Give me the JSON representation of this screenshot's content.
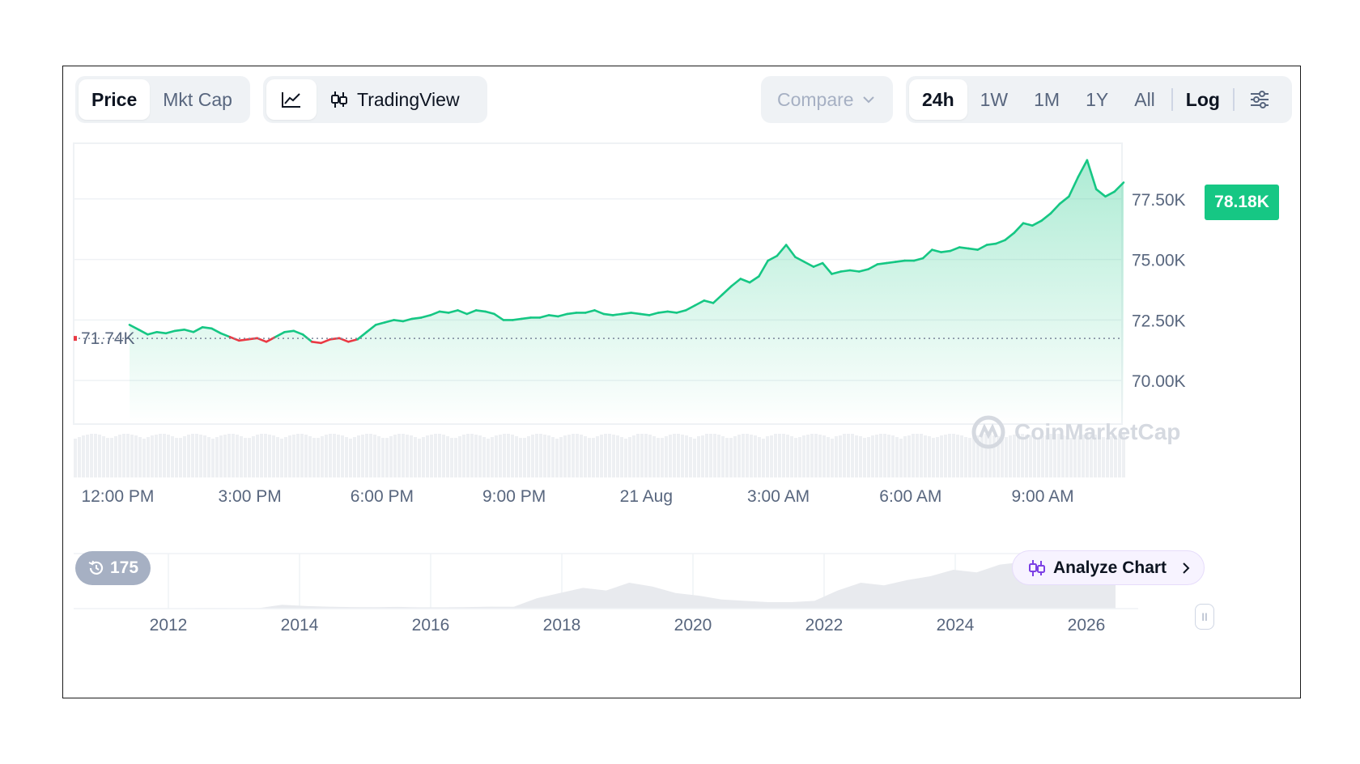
{
  "toolbar": {
    "type_tabs": [
      {
        "label": "Price",
        "active": true
      },
      {
        "label": "Mkt Cap",
        "active": false
      }
    ],
    "view_tabs": {
      "line_icon": "line-chart-icon",
      "tradingview_icon": "candlestick-icon",
      "tradingview_label": "TradingView"
    },
    "compare_label": "Compare",
    "ranges": [
      {
        "label": "24h",
        "active": true
      },
      {
        "label": "1W",
        "active": false
      },
      {
        "label": "1M",
        "active": false
      },
      {
        "label": "1Y",
        "active": false
      },
      {
        "label": "All",
        "active": false
      }
    ],
    "log_label": "Log",
    "settings_icon": "sliders-icon"
  },
  "colors": {
    "up": "#16c784",
    "down": "#ea3943",
    "muted": "#58667e",
    "accent": "#7b3fe4"
  },
  "chart_data": [
    {
      "type": "line",
      "x_ticks": [
        "12:00 PM",
        "3:00 PM",
        "6:00 PM",
        "9:00 PM",
        "21 Aug",
        "3:00 AM",
        "6:00 AM",
        "9:00 AM"
      ],
      "y_ticks": [
        "77.50K",
        "75.00K",
        "72.50K",
        "70.00K"
      ],
      "ylim": [
        68.2,
        79.8
      ],
      "reference": {
        "value": 71.74,
        "label": "71.74K"
      },
      "current": {
        "value": 78.18,
        "label": "78.18K"
      },
      "x_start_hour": 11.0,
      "x_end_hour": 34.8,
      "grid": true,
      "series": [
        {
          "values": [
            72.3,
            72.1,
            71.9,
            72.0,
            71.95,
            72.05,
            72.1,
            72.0,
            72.2,
            72.15,
            71.95,
            71.8,
            71.65,
            71.7,
            71.75,
            71.6,
            71.8,
            72.0,
            72.05,
            71.9,
            71.6,
            71.55,
            71.7,
            71.75,
            71.6,
            71.7,
            72.0,
            72.3,
            72.4,
            72.5,
            72.45,
            72.55,
            72.6,
            72.7,
            72.85,
            72.8,
            72.9,
            72.75,
            72.9,
            72.85,
            72.75,
            72.5,
            72.5,
            72.55,
            72.6,
            72.6,
            72.7,
            72.65,
            72.75,
            72.8,
            72.8,
            72.9,
            72.75,
            72.7,
            72.75,
            72.8,
            72.75,
            72.7,
            72.8,
            72.85,
            72.8,
            72.9,
            73.1,
            73.3,
            73.2,
            73.55,
            73.9,
            74.2,
            74.05,
            74.3,
            74.95,
            75.15,
            75.6,
            75.1,
            74.9,
            74.7,
            74.85,
            74.4,
            74.5,
            74.55,
            74.5,
            74.6,
            74.8,
            74.85,
            74.9,
            74.95,
            74.95,
            75.05,
            75.4,
            75.3,
            75.35,
            75.5,
            75.45,
            75.4,
            75.6,
            75.65,
            75.8,
            76.1,
            76.5,
            76.4,
            76.6,
            76.9,
            77.3,
            77.6,
            78.4,
            79.1,
            77.9,
            77.6,
            77.8,
            78.18
          ]
        }
      ]
    },
    {
      "type": "area",
      "x_ticks": [
        "2012",
        "2014",
        "2016",
        "2018",
        "2020",
        "2022",
        "2024",
        "2026"
      ],
      "values": [
        0.1,
        0.1,
        0.1,
        0.2,
        0.2,
        0.3,
        0.4,
        0.3,
        0.4,
        3,
        2,
        1.5,
        1.2,
        1.1,
        1.3,
        1,
        1,
        1.2,
        1.5,
        1.4,
        8,
        12,
        16,
        14,
        20,
        17,
        12,
        10,
        7,
        6,
        5,
        5,
        6,
        14,
        20,
        18,
        22,
        25,
        30,
        28,
        34,
        36,
        30,
        32,
        25,
        28
      ]
    }
  ],
  "history_badge": {
    "icon": "history-icon",
    "count": "175"
  },
  "analyze": {
    "icon": "candlestick-icon",
    "label": "Analyze Chart",
    "chevron": "chevron-right-icon"
  },
  "watermark": {
    "icon": "coinmarketcap-logo",
    "label": "CoinMarketCap"
  }
}
